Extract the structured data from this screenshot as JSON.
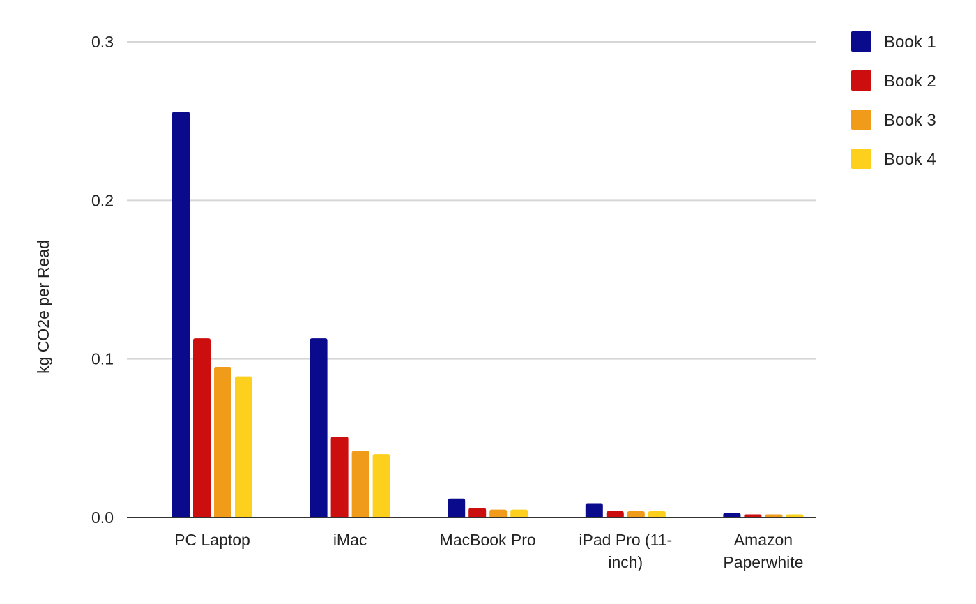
{
  "chart_data": {
    "type": "bar",
    "title": "",
    "xlabel": "",
    "ylabel": "kg CO2e per Read",
    "ylim": [
      0,
      0.3
    ],
    "yticks": [
      "0.0",
      "0.1",
      "0.2",
      "0.3"
    ],
    "grid": true,
    "legend_position": "top-right",
    "categories": [
      [
        "PC Laptop"
      ],
      [
        "iMac"
      ],
      [
        "MacBook Pro"
      ],
      [
        "iPad Pro (11-",
        "inch)"
      ],
      [
        "Amazon",
        "Paperwhite"
      ]
    ],
    "series": [
      {
        "name": "Book 1",
        "color": "#0a0a8c",
        "values": [
          0.256,
          0.113,
          0.012,
          0.009,
          0.003
        ]
      },
      {
        "name": "Book 2",
        "color": "#cc0e0e",
        "values": [
          0.113,
          0.051,
          0.006,
          0.004,
          0.002
        ]
      },
      {
        "name": "Book 3",
        "color": "#f09b1a",
        "values": [
          0.095,
          0.042,
          0.005,
          0.004,
          0.002
        ]
      },
      {
        "name": "Book 4",
        "color": "#fdd01d",
        "values": [
          0.089,
          0.04,
          0.005,
          0.004,
          0.002
        ]
      }
    ]
  }
}
